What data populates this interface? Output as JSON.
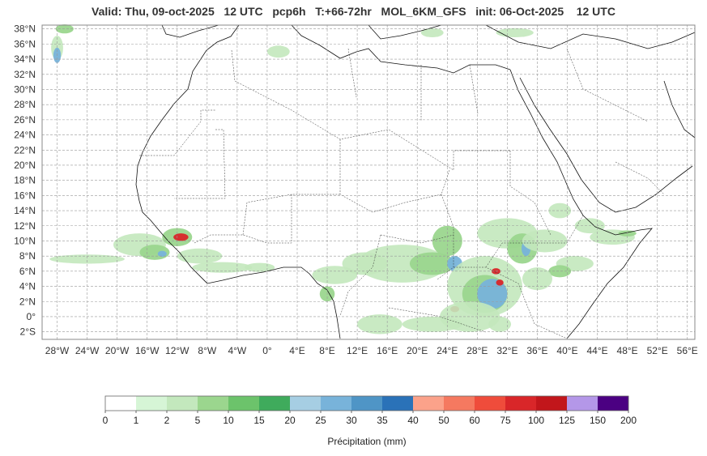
{
  "title": "Valid: Thu, 09-oct-2025   12 UTC   pcp6h   T:+66-72hr   MOL_6KM_GFS   init: 06-Oct-2025    12 UTC",
  "map": {
    "lon_range": [
      -30,
      57
    ],
    "lat_range": [
      -3,
      38.5
    ],
    "gridlines": true,
    "lat_ticks": [
      "38°N",
      "36°N",
      "34°N",
      "32°N",
      "30°N",
      "28°N",
      "26°N",
      "24°N",
      "22°N",
      "20°N",
      "18°N",
      "16°N",
      "14°N",
      "12°N",
      "10°N",
      "8°N",
      "6°N",
      "4°N",
      "2°N",
      "0°",
      "2°S"
    ],
    "lon_ticks": [
      "28°W",
      "24°W",
      "20°W",
      "16°W",
      "12°W",
      "8°W",
      "4°W",
      "0°",
      "4°E",
      "8°E",
      "12°E",
      "16°E",
      "20°E",
      "24°E",
      "28°E",
      "32°E",
      "36°E",
      "40°E",
      "44°E",
      "48°E",
      "52°E",
      "56°E"
    ]
  },
  "colorbar": {
    "title": "Précipitation (mm)",
    "bounds": [
      "0",
      "1",
      "2",
      "5",
      "10",
      "15",
      "20",
      "25",
      "30",
      "35",
      "40",
      "50",
      "60",
      "75",
      "100",
      "125",
      "150",
      "200"
    ],
    "colors": [
      "#ffffff",
      "#d6f5d6",
      "#c3e8bd",
      "#9bd68e",
      "#6cc36b",
      "#3fab5c",
      "#a6cee3",
      "#78b3da",
      "#4f95c6",
      "#2a72b8",
      "#fba28a",
      "#f57960",
      "#ef4c3b",
      "#d92629",
      "#c2161b",
      "#b497e8",
      "#4b0082"
    ]
  },
  "precip_colors": {
    "light": "#c3e8bd",
    "mid": "#9bd68e",
    "heavy": "#3fab5c",
    "blue": "#78b3da",
    "red": "#d92629"
  }
}
